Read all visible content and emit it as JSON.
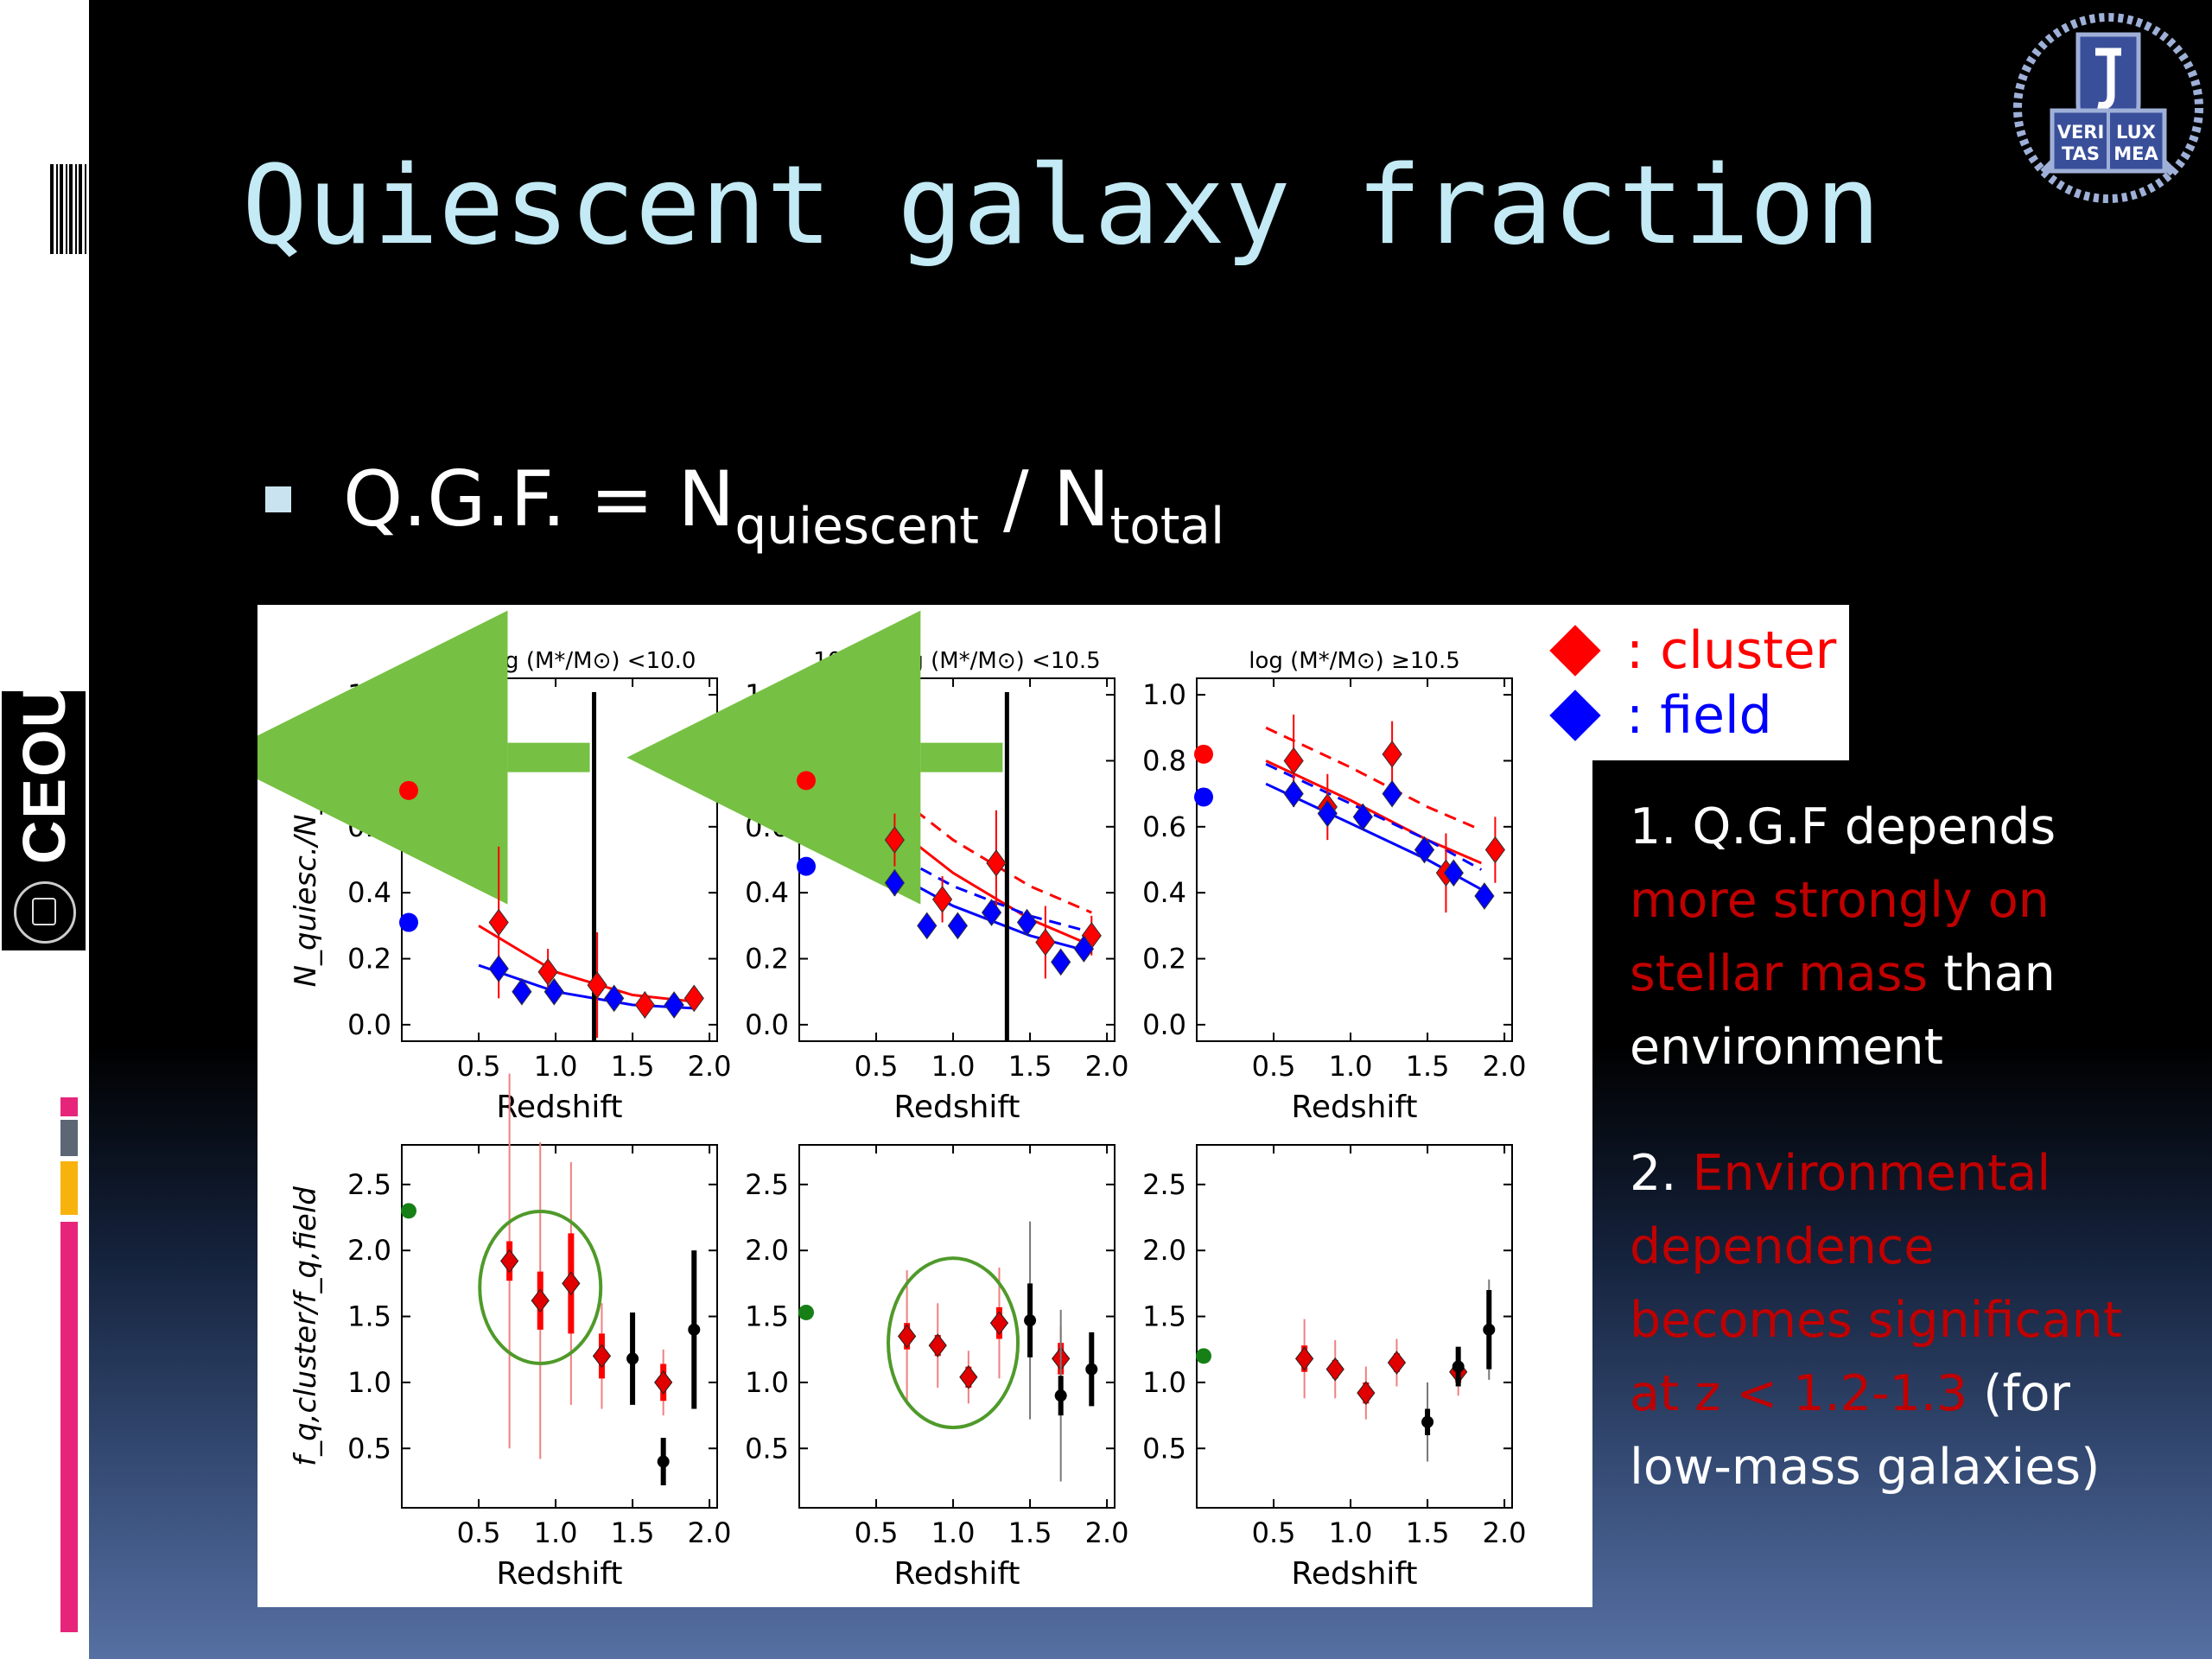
{
  "slide": {
    "title": "Quiescent galaxy fraction",
    "bullet": {
      "prefix": "Q.G.F. = N",
      "sub1": "quiescent",
      "mid": " / N",
      "sub2": "total"
    },
    "side_logo": {
      "text": "CEOU"
    },
    "corner_logo": {
      "text_top": "VERI LUX",
      "text_bottom": "TAS MEA"
    },
    "legend": [
      {
        "label": ": cluster",
        "color": "#ff0000"
      },
      {
        "label": ": field",
        "color": "#0000ff"
      }
    ],
    "notes": {
      "n1_num": "1. ",
      "n1_a": "Q.G.F depends ",
      "n1_red": "more strongly on stellar mass",
      "n1_b": " than environment",
      "n2_num": "2. ",
      "n2_red": "Environmental dependence becomes significant at z < 1.2-1.3",
      "n2_b": " (for low-mass galaxies)"
    },
    "colors": {
      "title": "#c3eaf5",
      "cluster": "#ff0000",
      "field": "#0000ff",
      "arrow": "#76c043",
      "circle": "#4f9a2a"
    }
  },
  "chart_data": [
    {
      "type": "scatter",
      "panel": "top-left",
      "title": "9.5 ≤log (M*/M⊙) <10.0",
      "xlabel": "Redshift",
      "ylabel": "N_quiesc./N_total",
      "xlim": [
        0,
        2.05
      ],
      "ylim": [
        -0.05,
        1.05
      ],
      "xticks": [
        "0.5",
        "1.0",
        "1.5",
        "2.0"
      ],
      "yticks": [
        "0.0",
        "0.2",
        "0.4",
        "0.6",
        "0.8",
        "1.0"
      ],
      "vline_x": 1.25,
      "local": {
        "cluster": 0.71,
        "field": 0.31
      },
      "series": [
        {
          "name": "cluster",
          "x": [
            0.63,
            0.95,
            1.27,
            1.58,
            1.9
          ],
          "y": [
            0.31,
            0.16,
            0.12,
            0.06,
            0.08
          ],
          "err": [
            0.23,
            0.07,
            0.16,
            0.04,
            0.03
          ]
        },
        {
          "name": "field",
          "x": [
            0.63,
            0.78,
            0.99,
            1.38,
            1.77
          ],
          "y": [
            0.17,
            0.1,
            0.1,
            0.08,
            0.06
          ],
          "err": [
            0.04,
            0.03,
            0.02,
            0.02,
            0.02
          ]
        }
      ],
      "fits": {
        "cluster": [
          [
            0.5,
            0.3
          ],
          [
            1.0,
            0.16
          ],
          [
            1.5,
            0.09
          ],
          [
            1.9,
            0.07
          ]
        ],
        "field": [
          [
            0.5,
            0.18
          ],
          [
            1.0,
            0.1
          ],
          [
            1.5,
            0.06
          ],
          [
            1.9,
            0.05
          ]
        ]
      }
    },
    {
      "type": "scatter",
      "panel": "top-middle",
      "title": "10.0 ≤log (M*/M⊙) <10.5",
      "xlabel": "Redshift",
      "ylabel": "",
      "xlim": [
        0,
        2.05
      ],
      "ylim": [
        -0.05,
        1.05
      ],
      "xticks": [
        "0.5",
        "1.0",
        "1.5",
        "2.0"
      ],
      "yticks": [
        "0.0",
        "0.2",
        "0.4",
        "0.6",
        "0.8",
        "1.0"
      ],
      "vline_x": 1.35,
      "local": {
        "cluster": 0.74,
        "field": 0.48
      },
      "series": [
        {
          "name": "cluster",
          "x": [
            0.62,
            0.93,
            1.28,
            1.6,
            1.9
          ],
          "y": [
            0.56,
            0.38,
            0.49,
            0.25,
            0.27
          ],
          "err": [
            0.08,
            0.07,
            0.16,
            0.11,
            0.06
          ]
        },
        {
          "name": "field",
          "x": [
            0.62,
            0.83,
            1.03,
            1.25,
            1.48,
            1.7,
            1.85
          ],
          "y": [
            0.43,
            0.3,
            0.3,
            0.34,
            0.31,
            0.19,
            0.23
          ],
          "err": [
            0.04,
            0.03,
            0.03,
            0.03,
            0.03,
            0.03,
            0.02
          ]
        }
      ],
      "fits": {
        "cluster": [
          [
            0.45,
            0.66
          ],
          [
            1.0,
            0.46
          ],
          [
            1.5,
            0.32
          ],
          [
            1.9,
            0.24
          ]
        ],
        "field": [
          [
            0.45,
            0.5
          ],
          [
            1.0,
            0.36
          ],
          [
            1.5,
            0.27
          ],
          [
            1.9,
            0.22
          ]
        ]
      }
    },
    {
      "type": "scatter",
      "panel": "top-right",
      "title": "log (M*/M⊙) ≥10.5",
      "xlabel": "Redshift",
      "ylabel": "",
      "xlim": [
        0,
        2.05
      ],
      "ylim": [
        -0.05,
        1.05
      ],
      "xticks": [
        "0.5",
        "1.0",
        "1.5",
        "2.0"
      ],
      "yticks": [
        "0.0",
        "0.2",
        "0.4",
        "0.6",
        "0.8",
        "1.0"
      ],
      "local": {
        "cluster": 0.82,
        "field": 0.69
      },
      "series": [
        {
          "name": "cluster",
          "x": [
            0.63,
            0.85,
            1.27,
            1.62,
            1.94
          ],
          "y": [
            0.8,
            0.66,
            0.82,
            0.46,
            0.53
          ],
          "err": [
            0.14,
            0.1,
            0.1,
            0.12,
            0.1
          ]
        },
        {
          "name": "field",
          "x": [
            0.63,
            0.85,
            1.08,
            1.27,
            1.48,
            1.67,
            1.87
          ],
          "y": [
            0.7,
            0.64,
            0.63,
            0.7,
            0.53,
            0.46,
            0.39
          ],
          "err": [
            0.04,
            0.03,
            0.03,
            0.03,
            0.03,
            0.03,
            0.02
          ]
        }
      ],
      "fits": {
        "cluster": [
          [
            0.45,
            0.8
          ],
          [
            1.0,
            0.68
          ],
          [
            1.5,
            0.56
          ],
          [
            1.85,
            0.49
          ]
        ],
        "field": [
          [
            0.45,
            0.73
          ],
          [
            1.0,
            0.61
          ],
          [
            1.5,
            0.5
          ],
          [
            1.85,
            0.41
          ]
        ]
      }
    },
    {
      "type": "scatter",
      "panel": "bottom-left",
      "xlabel": "Redshift",
      "ylabel": "f_q,cluster/f_q,field",
      "xlim": [
        0,
        2.05
      ],
      "ylim": [
        0.05,
        2.8
      ],
      "xticks": [
        "0.5",
        "1.0",
        "1.5",
        "2.0"
      ],
      "yticks": [
        "0.5",
        "1.0",
        "1.5",
        "2.0",
        "2.5"
      ],
      "local": 2.3,
      "red_points": [
        {
          "x": 0.7,
          "y": 1.92,
          "err": 0.15,
          "err2": 1.42
        },
        {
          "x": 0.9,
          "y": 1.62,
          "err": 0.22,
          "err2": 1.2
        },
        {
          "x": 1.1,
          "y": 1.75,
          "err": 0.38,
          "err2": 0.92
        },
        {
          "x": 1.3,
          "y": 1.2,
          "err": 0.17,
          "err2": 0.4
        },
        {
          "x": 1.7,
          "y": 1.0,
          "err": 0.14,
          "err2": 0.25
        }
      ],
      "black_points": [
        {
          "x": 1.5,
          "y": 1.18,
          "err": 0.35
        },
        {
          "x": 1.7,
          "y": 0.4,
          "err": 0.18
        },
        {
          "x": 1.9,
          "y": 1.4,
          "err": 0.6
        }
      ]
    },
    {
      "type": "scatter",
      "panel": "bottom-middle",
      "xlabel": "Redshift",
      "ylabel": "",
      "xlim": [
        0,
        2.05
      ],
      "ylim": [
        0.05,
        2.8
      ],
      "xticks": [
        "0.5",
        "1.0",
        "1.5",
        "2.0"
      ],
      "yticks": [
        "0.5",
        "1.0",
        "1.5",
        "2.0",
        "2.5"
      ],
      "local": 1.53,
      "red_points": [
        {
          "x": 0.7,
          "y": 1.35,
          "err": 0.1,
          "err2": 0.5
        },
        {
          "x": 0.9,
          "y": 1.28,
          "err": 0.08,
          "err2": 0.32
        },
        {
          "x": 1.1,
          "y": 1.04,
          "err": 0.08,
          "err2": 0.2
        },
        {
          "x": 1.3,
          "y": 1.45,
          "err": 0.12,
          "err2": 0.42
        },
        {
          "x": 1.7,
          "y": 1.18,
          "err": 0.12,
          "err2": 0.25
        }
      ],
      "black_points": [
        {
          "x": 1.5,
          "y": 1.47,
          "err": 0.28,
          "err2": 0.75
        },
        {
          "x": 1.7,
          "y": 0.9,
          "err": 0.15,
          "err2": 0.65
        },
        {
          "x": 1.9,
          "y": 1.1,
          "err": 0.28
        }
      ]
    },
    {
      "type": "scatter",
      "panel": "bottom-right",
      "xlabel": "Redshift",
      "ylabel": "",
      "xlim": [
        0,
        2.05
      ],
      "ylim": [
        0.05,
        2.8
      ],
      "xticks": [
        "0.5",
        "1.0",
        "1.5",
        "2.0"
      ],
      "yticks": [
        "0.5",
        "1.0",
        "1.5",
        "2.0",
        "2.5"
      ],
      "local": 1.2,
      "red_points": [
        {
          "x": 0.7,
          "y": 1.18,
          "err": 0.1,
          "err2": 0.3
        },
        {
          "x": 0.9,
          "y": 1.1,
          "err": 0.07,
          "err2": 0.22
        },
        {
          "x": 1.1,
          "y": 0.92,
          "err": 0.08,
          "err2": 0.2
        },
        {
          "x": 1.3,
          "y": 1.15,
          "err": 0.07,
          "err2": 0.18
        },
        {
          "x": 1.7,
          "y": 1.08,
          "err": 0.08,
          "err2": 0.18
        }
      ],
      "black_points": [
        {
          "x": 1.5,
          "y": 0.7,
          "err": 0.1,
          "err2": 0.3
        },
        {
          "x": 1.7,
          "y": 1.12,
          "err": 0.15
        },
        {
          "x": 1.9,
          "y": 1.4,
          "err": 0.3,
          "err2": 0.38
        }
      ]
    }
  ]
}
